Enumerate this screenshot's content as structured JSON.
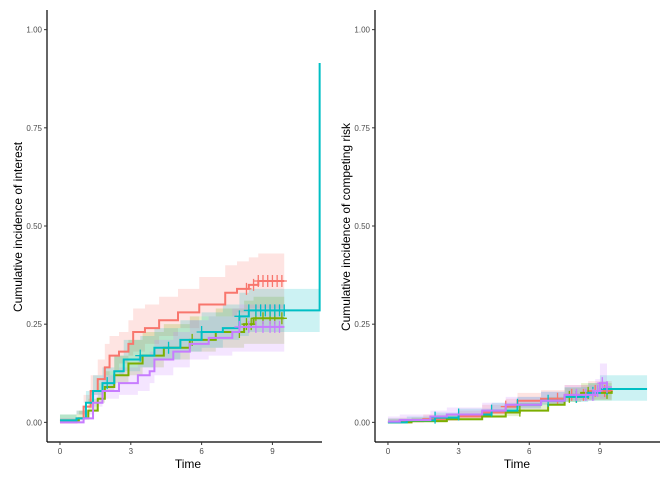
{
  "chart_data": [
    {
      "type": "line",
      "step": true,
      "xlabel": "Time",
      "ylabel": "Cumulative incidence of interest",
      "xlim": [
        -0.55,
        11.1
      ],
      "ylim": [
        -0.05,
        1.05
      ],
      "xticks": [
        "0",
        "3",
        "6",
        "9"
      ],
      "xtick_values": [
        0,
        3,
        6,
        9
      ],
      "yticks": [
        "0.00",
        "0.25",
        "0.50",
        "0.75",
        "1.00"
      ],
      "ytick_values": [
        0,
        0.25,
        0.5,
        0.75,
        1.0
      ],
      "grid": false,
      "legend": "none",
      "series": [
        {
          "color": "#F8766D",
          "x": [
            0,
            0.7,
            1.0,
            1.3,
            1.6,
            1.9,
            2.1,
            2.5,
            2.9,
            3.1,
            3.6,
            4.2,
            5.0,
            5.9,
            7.0,
            7.5,
            8.0,
            8.4,
            9.5
          ],
          "y": [
            0,
            0.01,
            0.04,
            0.08,
            0.11,
            0.14,
            0.17,
            0.18,
            0.2,
            0.23,
            0.24,
            0.26,
            0.28,
            0.3,
            0.33,
            0.34,
            0.35,
            0.36,
            0.36
          ],
          "lower": [
            0,
            0,
            0.02,
            0.05,
            0.07,
            0.1,
            0.12,
            0.13,
            0.15,
            0.17,
            0.18,
            0.2,
            0.22,
            0.24,
            0.27,
            0.27,
            0.28,
            0.29,
            0.29
          ],
          "upper": [
            0.01,
            0.03,
            0.07,
            0.12,
            0.16,
            0.2,
            0.22,
            0.23,
            0.26,
            0.29,
            0.3,
            0.32,
            0.34,
            0.37,
            0.4,
            0.41,
            0.42,
            0.43,
            0.43
          ],
          "censor": [
            7.9,
            8.2,
            8.4,
            8.6,
            8.8,
            9.0,
            9.2,
            9.4
          ]
        },
        {
          "color": "#7CAE00",
          "x": [
            0,
            0.8,
            1.2,
            1.6,
            1.9,
            2.3,
            2.9,
            3.5,
            4.4,
            5.5,
            6.6,
            7.8,
            8.2,
            9.5
          ],
          "y": [
            0.005,
            0.01,
            0.03,
            0.06,
            0.09,
            0.12,
            0.15,
            0.17,
            0.19,
            0.21,
            0.23,
            0.25,
            0.265,
            0.265
          ],
          "lower": [
            0,
            0,
            0.01,
            0.03,
            0.05,
            0.08,
            0.1,
            0.12,
            0.14,
            0.16,
            0.18,
            0.19,
            0.2,
            0.2
          ],
          "upper": [
            0.02,
            0.03,
            0.06,
            0.1,
            0.13,
            0.17,
            0.21,
            0.23,
            0.25,
            0.27,
            0.29,
            0.31,
            0.32,
            0.32
          ],
          "censor": [
            5.6,
            7.6,
            7.9,
            8.1,
            8.3,
            8.6,
            8.9,
            9.1,
            9.4
          ]
        },
        {
          "color": "#00BFC4",
          "x": [
            0,
            0.7,
            1.1,
            1.4,
            1.8,
            2.3,
            2.7,
            3.4,
            4.0,
            5.1,
            6.0,
            6.9,
            7.6,
            8.0,
            11.0,
            11.0
          ],
          "y": [
            0.005,
            0.01,
            0.05,
            0.08,
            0.1,
            0.13,
            0.16,
            0.17,
            0.19,
            0.21,
            0.23,
            0.24,
            0.27,
            0.285,
            0.285,
            0.915
          ],
          "lower": [
            0,
            0,
            0.02,
            0.05,
            0.07,
            0.09,
            0.12,
            0.13,
            0.14,
            0.16,
            0.18,
            0.19,
            0.21,
            0.22,
            0.23,
            0.23
          ],
          "upper": [
            0.02,
            0.03,
            0.08,
            0.12,
            0.14,
            0.17,
            0.21,
            0.22,
            0.24,
            0.26,
            0.28,
            0.3,
            0.33,
            0.34,
            0.34,
            0.34
          ],
          "censor": [
            2.0,
            3.4,
            4.6,
            6.0,
            7.6,
            8.0,
            8.3,
            8.5,
            8.7,
            8.9,
            9.1,
            9.3,
            9.5
          ]
        },
        {
          "color": "#C77CFF",
          "x": [
            0,
            1.0,
            1.4,
            1.8,
            2.5,
            3.3,
            3.8,
            4.0,
            4.8,
            5.5,
            6.3,
            7.3,
            7.6,
            9.5
          ],
          "y": [
            0,
            0.01,
            0.05,
            0.08,
            0.1,
            0.12,
            0.13,
            0.16,
            0.18,
            0.2,
            0.215,
            0.23,
            0.243,
            0.243
          ],
          "lower": [
            0,
            0,
            0.02,
            0.04,
            0.06,
            0.07,
            0.08,
            0.1,
            0.12,
            0.14,
            0.16,
            0.17,
            0.18,
            0.18
          ],
          "upper": [
            0.01,
            0.03,
            0.08,
            0.12,
            0.14,
            0.17,
            0.18,
            0.21,
            0.23,
            0.26,
            0.27,
            0.29,
            0.3,
            0.3
          ],
          "censor": [
            7.6,
            8.0,
            8.3,
            8.6,
            8.9,
            9.1,
            9.3
          ]
        }
      ]
    },
    {
      "type": "line",
      "step": true,
      "xlabel": "Time",
      "ylabel": "Cumulative incidence of competing risk",
      "xlim": [
        -0.55,
        11.55
      ],
      "ylim": [
        -0.05,
        1.05
      ],
      "xticks": [
        "0",
        "3",
        "6",
        "9"
      ],
      "xtick_values": [
        0,
        3,
        6,
        9
      ],
      "yticks": [
        "0.00",
        "0.25",
        "0.50",
        "0.75",
        "1.00"
      ],
      "ytick_values": [
        0,
        0.25,
        0.5,
        0.75,
        1.0
      ],
      "grid": false,
      "legend": "none",
      "series": [
        {
          "color": "#F8766D",
          "x": [
            0,
            0.5,
            1.5,
            3.0,
            4.0,
            5.0,
            5.5,
            6.5,
            7.5,
            8.5,
            9.5
          ],
          "y": [
            0,
            0.003,
            0.008,
            0.015,
            0.025,
            0.04,
            0.055,
            0.06,
            0.07,
            0.08,
            0.085
          ],
          "lower": [
            0,
            0,
            0,
            0.005,
            0.012,
            0.022,
            0.035,
            0.04,
            0.048,
            0.055,
            0.058
          ],
          "upper": [
            0.01,
            0.012,
            0.02,
            0.03,
            0.045,
            0.06,
            0.075,
            0.082,
            0.095,
            0.105,
            0.11
          ],
          "censor": [
            5.0,
            7.2,
            7.8,
            8.3,
            8.8,
            9.2
          ]
        },
        {
          "color": "#7CAE00",
          "x": [
            0,
            1.0,
            2.5,
            4.0,
            5.0,
            5.6,
            6.8,
            7.5,
            8.2,
            9.5
          ],
          "y": [
            0,
            0.003,
            0.008,
            0.015,
            0.025,
            0.03,
            0.045,
            0.065,
            0.075,
            0.08
          ],
          "lower": [
            0,
            0,
            0,
            0.005,
            0.012,
            0.016,
            0.028,
            0.045,
            0.052,
            0.056
          ],
          "upper": [
            0.008,
            0.012,
            0.02,
            0.03,
            0.042,
            0.05,
            0.065,
            0.088,
            0.1,
            0.105
          ],
          "censor": [
            5.6,
            7.7,
            8.0,
            8.5,
            9.3
          ]
        },
        {
          "color": "#00BFC4",
          "x": [
            0,
            0.8,
            2.0,
            3.0,
            4.4,
            5.5,
            6.5,
            7.5,
            8.5,
            9.0,
            11.0
          ],
          "y": [
            0,
            0.005,
            0.012,
            0.02,
            0.03,
            0.045,
            0.055,
            0.065,
            0.075,
            0.085,
            0.085
          ],
          "lower": [
            0,
            0,
            0.003,
            0.008,
            0.015,
            0.028,
            0.036,
            0.044,
            0.052,
            0.055,
            0.055
          ],
          "upper": [
            0.01,
            0.015,
            0.025,
            0.035,
            0.05,
            0.065,
            0.078,
            0.09,
            0.1,
            0.12,
            0.12
          ],
          "censor": [
            2.0,
            3.0,
            4.4,
            5.5,
            6.8,
            8.0,
            8.7,
            9.3
          ]
        },
        {
          "color": "#C77CFF",
          "x": [
            0,
            0.5,
            1.8,
            2.5,
            4.0,
            5.0,
            6.5,
            7.5,
            8.8,
            9.0,
            9.3
          ],
          "y": [
            0.002,
            0.006,
            0.015,
            0.02,
            0.03,
            0.045,
            0.055,
            0.07,
            0.08,
            0.1,
            0.09
          ],
          "lower": [
            0,
            0,
            0.005,
            0.008,
            0.015,
            0.028,
            0.035,
            0.048,
            0.055,
            0.065,
            0.06
          ],
          "upper": [
            0.015,
            0.02,
            0.03,
            0.038,
            0.05,
            0.065,
            0.078,
            0.095,
            0.11,
            0.15,
            0.13
          ],
          "censor": [
            8.0,
            8.4,
            8.7,
            8.9,
            9.1,
            9.3
          ]
        }
      ]
    }
  ]
}
